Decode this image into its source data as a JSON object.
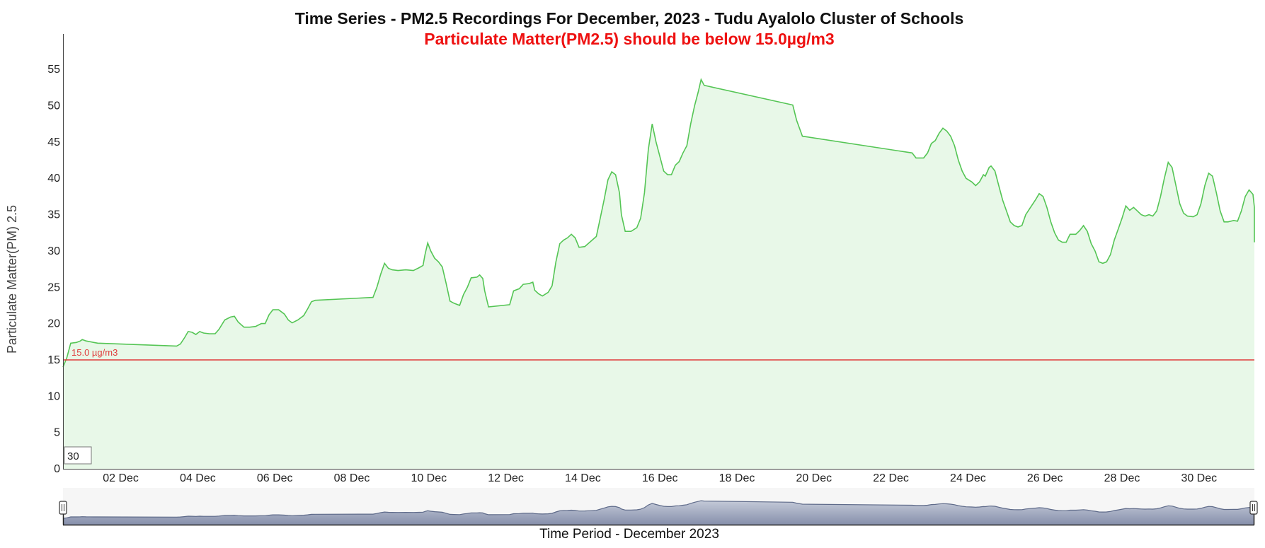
{
  "chart_data": {
    "type": "area",
    "title": "Time Series - PM2.5 Recordings For December, 2023 - Tudu Ayalolo Cluster of Schools",
    "subtitle": "Particulate Matter(PM2.5) should be below 15.0µg/m3",
    "xlabel": "Time Period - December 2023",
    "ylabel": "Particulate Matter(PM) 2.5",
    "xlim": [
      0.0,
      31.9
    ],
    "ylim": [
      0,
      60
    ],
    "y_ticks": [
      "0",
      "5",
      "10",
      "15",
      "20",
      "25",
      "30",
      "35",
      "40",
      "45",
      "50",
      "55"
    ],
    "x_ticks": [
      {
        "day": 1.5,
        "label": "02 Dec"
      },
      {
        "day": 3.5,
        "label": "04 Dec"
      },
      {
        "day": 5.5,
        "label": "06 Dec"
      },
      {
        "day": 7.5,
        "label": "08 Dec"
      },
      {
        "day": 9.5,
        "label": "10 Dec"
      },
      {
        "day": 11.5,
        "label": "12 Dec"
      },
      {
        "day": 13.5,
        "label": "14 Dec"
      },
      {
        "day": 15.5,
        "label": "16 Dec"
      },
      {
        "day": 17.5,
        "label": "18 Dec"
      },
      {
        "day": 19.5,
        "label": "20 Dec"
      },
      {
        "day": 21.5,
        "label": "22 Dec"
      },
      {
        "day": 23.5,
        "label": "24 Dec"
      },
      {
        "day": 25.5,
        "label": "26 Dec"
      },
      {
        "day": 27.5,
        "label": "28 Dec"
      },
      {
        "day": 29.5,
        "label": "30 Dec"
      }
    ],
    "reference_line": {
      "value": 15.0,
      "label": "15.0 µg/m3",
      "color": "#e03b3b"
    },
    "grid": false,
    "series": [
      {
        "color": "#55c555",
        "fill": "#e8f8e8",
        "points": [
          [
            0.0,
            14.0
          ],
          [
            0.1,
            15.3
          ],
          [
            0.2,
            17.3
          ],
          [
            0.35,
            17.4
          ],
          [
            0.45,
            17.6
          ],
          [
            0.5,
            17.8
          ],
          [
            0.6,
            17.6
          ],
          [
            0.8,
            17.4
          ],
          [
            0.9,
            17.3
          ],
          [
            2.95,
            16.9
          ],
          [
            3.05,
            17.2
          ],
          [
            3.15,
            18.0
          ],
          [
            3.25,
            18.9
          ],
          [
            3.35,
            18.8
          ],
          [
            3.45,
            18.5
          ],
          [
            3.55,
            18.9
          ],
          [
            3.65,
            18.7
          ],
          [
            3.8,
            18.6
          ],
          [
            3.95,
            18.6
          ],
          [
            4.05,
            19.2
          ],
          [
            4.2,
            20.5
          ],
          [
            4.35,
            20.9
          ],
          [
            4.45,
            21.0
          ],
          [
            4.55,
            20.2
          ],
          [
            4.7,
            19.5
          ],
          [
            4.85,
            19.5
          ],
          [
            5.0,
            19.6
          ],
          [
            5.15,
            20.0
          ],
          [
            5.25,
            20.0
          ],
          [
            5.35,
            21.2
          ],
          [
            5.45,
            21.9
          ],
          [
            5.6,
            21.9
          ],
          [
            5.75,
            21.3
          ],
          [
            5.85,
            20.5
          ],
          [
            5.95,
            20.1
          ],
          [
            6.1,
            20.5
          ],
          [
            6.25,
            21.1
          ],
          [
            6.35,
            22.0
          ],
          [
            6.45,
            23.0
          ],
          [
            6.55,
            23.2
          ],
          [
            8.05,
            23.6
          ],
          [
            8.15,
            25.0
          ],
          [
            8.25,
            26.8
          ],
          [
            8.35,
            28.3
          ],
          [
            8.45,
            27.6
          ],
          [
            8.55,
            27.4
          ],
          [
            8.7,
            27.3
          ],
          [
            8.9,
            27.4
          ],
          [
            9.1,
            27.3
          ],
          [
            9.25,
            27.7
          ],
          [
            9.35,
            28.0
          ],
          [
            9.4,
            29.5
          ],
          [
            9.47,
            31.1
          ],
          [
            9.55,
            30.0
          ],
          [
            9.65,
            29.0
          ],
          [
            9.75,
            28.5
          ],
          [
            9.85,
            27.8
          ],
          [
            9.95,
            25.5
          ],
          [
            10.05,
            23.1
          ],
          [
            10.15,
            22.8
          ],
          [
            10.3,
            22.5
          ],
          [
            10.4,
            24.0
          ],
          [
            10.5,
            25.0
          ],
          [
            10.6,
            26.3
          ],
          [
            10.75,
            26.4
          ],
          [
            10.82,
            26.7
          ],
          [
            10.9,
            26.2
          ],
          [
            10.95,
            24.5
          ],
          [
            11.05,
            22.3
          ],
          [
            11.6,
            22.6
          ],
          [
            11.7,
            24.5
          ],
          [
            11.85,
            24.8
          ],
          [
            11.95,
            25.4
          ],
          [
            12.1,
            25.5
          ],
          [
            12.2,
            25.7
          ],
          [
            12.25,
            24.6
          ],
          [
            12.35,
            24.1
          ],
          [
            12.45,
            23.8
          ],
          [
            12.6,
            24.3
          ],
          [
            12.7,
            25.2
          ],
          [
            12.8,
            28.5
          ],
          [
            12.9,
            31.0
          ],
          [
            13.0,
            31.5
          ],
          [
            13.1,
            31.8
          ],
          [
            13.2,
            32.3
          ],
          [
            13.3,
            31.8
          ],
          [
            13.4,
            30.5
          ],
          [
            13.55,
            30.6
          ],
          [
            13.7,
            31.3
          ],
          [
            13.85,
            32.0
          ],
          [
            13.95,
            34.5
          ],
          [
            14.05,
            37.0
          ],
          [
            14.15,
            39.8
          ],
          [
            14.25,
            40.9
          ],
          [
            14.35,
            40.5
          ],
          [
            14.45,
            38.0
          ],
          [
            14.5,
            35.0
          ],
          [
            14.6,
            32.7
          ],
          [
            14.75,
            32.7
          ],
          [
            14.9,
            33.2
          ],
          [
            15.0,
            34.5
          ],
          [
            15.1,
            38.0
          ],
          [
            15.2,
            44.0
          ],
          [
            15.3,
            47.5
          ],
          [
            15.4,
            45.0
          ],
          [
            15.5,
            43.0
          ],
          [
            15.6,
            41.0
          ],
          [
            15.7,
            40.5
          ],
          [
            15.8,
            40.5
          ],
          [
            15.9,
            41.8
          ],
          [
            16.0,
            42.3
          ],
          [
            16.1,
            43.5
          ],
          [
            16.2,
            44.5
          ],
          [
            16.3,
            47.5
          ],
          [
            16.4,
            50.0
          ],
          [
            16.5,
            52.0
          ],
          [
            16.57,
            53.6
          ],
          [
            16.65,
            52.8
          ],
          [
            18.95,
            50.1
          ],
          [
            19.05,
            48.0
          ],
          [
            19.2,
            45.8
          ],
          [
            22.05,
            43.5
          ],
          [
            22.15,
            42.8
          ],
          [
            22.35,
            42.8
          ],
          [
            22.45,
            43.5
          ],
          [
            22.55,
            44.8
          ],
          [
            22.65,
            45.2
          ],
          [
            22.75,
            46.2
          ],
          [
            22.85,
            46.9
          ],
          [
            22.95,
            46.5
          ],
          [
            23.05,
            45.8
          ],
          [
            23.15,
            44.5
          ],
          [
            23.25,
            42.5
          ],
          [
            23.35,
            41.0
          ],
          [
            23.45,
            40.0
          ],
          [
            23.6,
            39.5
          ],
          [
            23.7,
            39.0
          ],
          [
            23.8,
            39.5
          ],
          [
            23.9,
            40.5
          ],
          [
            23.95,
            40.3
          ],
          [
            24.05,
            41.5
          ],
          [
            24.1,
            41.7
          ],
          [
            24.2,
            41.0
          ],
          [
            24.3,
            39.0
          ],
          [
            24.4,
            37.0
          ],
          [
            24.5,
            35.5
          ],
          [
            24.6,
            34.0
          ],
          [
            24.7,
            33.5
          ],
          [
            24.8,
            33.3
          ],
          [
            24.9,
            33.5
          ],
          [
            25.0,
            35.0
          ],
          [
            25.1,
            35.8
          ],
          [
            25.25,
            37.0
          ],
          [
            25.35,
            37.9
          ],
          [
            25.45,
            37.5
          ],
          [
            25.55,
            36.0
          ],
          [
            25.65,
            34.0
          ],
          [
            25.75,
            32.5
          ],
          [
            25.85,
            31.5
          ],
          [
            25.95,
            31.2
          ],
          [
            26.05,
            31.2
          ],
          [
            26.15,
            32.3
          ],
          [
            26.3,
            32.3
          ],
          [
            26.4,
            32.8
          ],
          [
            26.5,
            33.5
          ],
          [
            26.6,
            32.7
          ],
          [
            26.7,
            31.0
          ],
          [
            26.8,
            30.0
          ],
          [
            26.9,
            28.5
          ],
          [
            27.0,
            28.3
          ],
          [
            27.1,
            28.5
          ],
          [
            27.2,
            29.5
          ],
          [
            27.3,
            31.5
          ],
          [
            27.4,
            33.0
          ],
          [
            27.5,
            34.5
          ],
          [
            27.6,
            36.2
          ],
          [
            27.7,
            35.6
          ],
          [
            27.8,
            36.0
          ],
          [
            27.9,
            35.5
          ],
          [
            28.0,
            35.0
          ],
          [
            28.1,
            34.8
          ],
          [
            28.2,
            35.0
          ],
          [
            28.3,
            34.8
          ],
          [
            28.4,
            35.5
          ],
          [
            28.5,
            37.5
          ],
          [
            28.6,
            40.0
          ],
          [
            28.7,
            42.2
          ],
          [
            28.8,
            41.5
          ],
          [
            28.9,
            39.0
          ],
          [
            29.0,
            36.5
          ],
          [
            29.1,
            35.2
          ],
          [
            29.2,
            34.8
          ],
          [
            29.35,
            34.7
          ],
          [
            29.45,
            35.0
          ],
          [
            29.55,
            36.5
          ],
          [
            29.65,
            39.0
          ],
          [
            29.75,
            40.7
          ],
          [
            29.85,
            40.3
          ],
          [
            29.95,
            38.0
          ],
          [
            30.05,
            35.5
          ],
          [
            30.15,
            34.0
          ],
          [
            30.25,
            34.0
          ],
          [
            30.4,
            34.2
          ],
          [
            30.5,
            34.1
          ],
          [
            30.6,
            35.5
          ],
          [
            30.7,
            37.5
          ],
          [
            30.8,
            38.4
          ],
          [
            30.9,
            37.8
          ],
          [
            31.0,
            36.0
          ],
          [
            31.1,
            34.0
          ],
          [
            31.2,
            32.0
          ],
          [
            31.3,
            31.3
          ],
          [
            31.45,
            31.3
          ],
          [
            31.55,
            31.8
          ],
          [
            31.65,
            34.0
          ],
          [
            31.75,
            35.5
          ],
          [
            31.85,
            35.8
          ],
          [
            31.95,
            34.5
          ],
          [
            32.05,
            32.5
          ],
          [
            32.15,
            31.4
          ],
          [
            32.25,
            31.2
          ],
          [
            32.3,
            31.5
          ]
        ]
      }
    ]
  },
  "value_box": "30"
}
